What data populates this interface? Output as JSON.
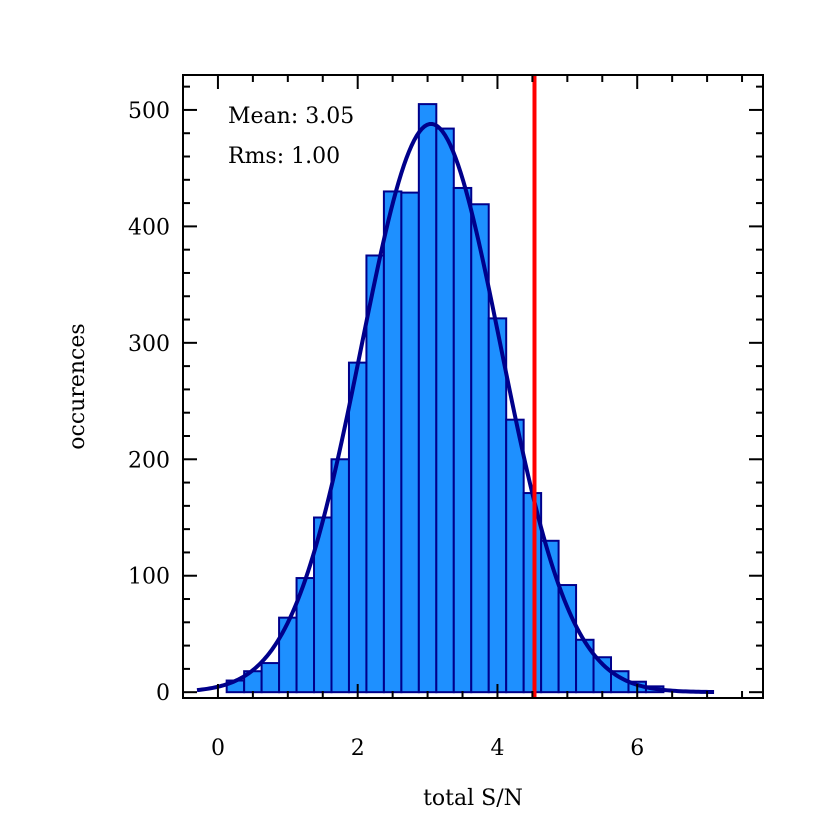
{
  "chart_data": {
    "type": "bar",
    "xlabel": "total S/N",
    "ylabel": "occurences",
    "xlim": [
      -0.5,
      7.8
    ],
    "ylim": [
      -5,
      530
    ],
    "x_ticks": [
      0,
      2,
      4,
      6
    ],
    "y_ticks": [
      0,
      100,
      200,
      300,
      400,
      500
    ],
    "annotations": [
      "Mean: 3.05",
      "Rms: 1.00"
    ],
    "bin_width": 0.25,
    "bins": [
      {
        "x0": 0.125,
        "count": 10
      },
      {
        "x0": 0.375,
        "count": 18
      },
      {
        "x0": 0.625,
        "count": 25
      },
      {
        "x0": 0.875,
        "count": 64
      },
      {
        "x0": 1.125,
        "count": 98
      },
      {
        "x0": 1.375,
        "count": 150
      },
      {
        "x0": 1.625,
        "count": 200
      },
      {
        "x0": 1.875,
        "count": 283
      },
      {
        "x0": 2.125,
        "count": 375
      },
      {
        "x0": 2.375,
        "count": 430
      },
      {
        "x0": 2.625,
        "count": 429
      },
      {
        "x0": 2.875,
        "count": 505
      },
      {
        "x0": 3.125,
        "count": 484
      },
      {
        "x0": 3.375,
        "count": 433
      },
      {
        "x0": 3.625,
        "count": 419
      },
      {
        "x0": 3.875,
        "count": 321
      },
      {
        "x0": 4.125,
        "count": 234
      },
      {
        "x0": 4.375,
        "count": 171
      },
      {
        "x0": 4.625,
        "count": 130
      },
      {
        "x0": 4.875,
        "count": 92
      },
      {
        "x0": 5.125,
        "count": 45
      },
      {
        "x0": 5.375,
        "count": 30
      },
      {
        "x0": 5.625,
        "count": 18
      },
      {
        "x0": 5.875,
        "count": 9
      },
      {
        "x0": 6.125,
        "count": 5
      }
    ],
    "fit_curve": {
      "type": "gaussian",
      "mean": 3.05,
      "rms": 1.0,
      "peak": 488,
      "x_range": [
        -0.3,
        7.1
      ]
    },
    "threshold_line": {
      "x": 4.53
    },
    "colors": {
      "bar_fill": "#1e90ff",
      "bar_edge": "#00008b",
      "fit_line": "#00008b",
      "threshold_line": "#ff0000"
    }
  }
}
